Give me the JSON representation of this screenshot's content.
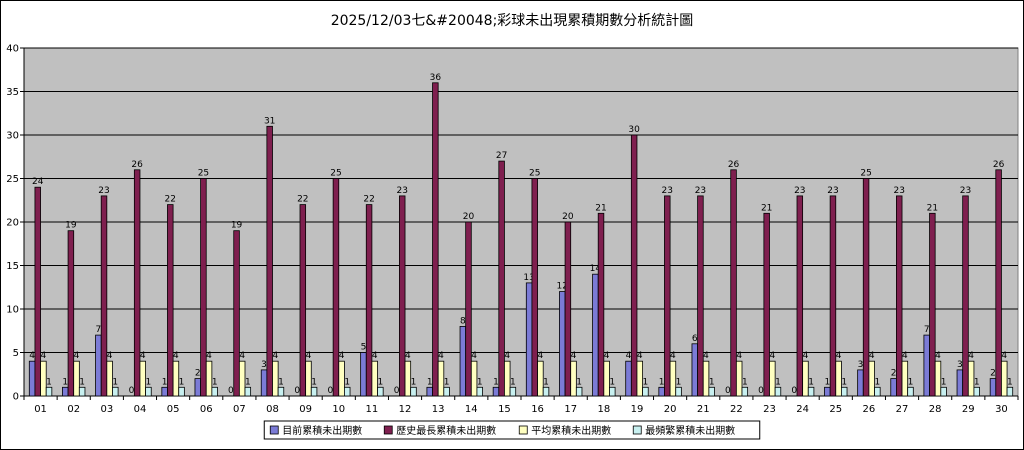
{
  "chart_data": {
    "type": "bar",
    "title": "2025/12/03七&#20048;彩球未出現累積期數分析統計圖",
    "xlabel": "",
    "ylabel": "",
    "ylim": [
      0,
      40
    ],
    "yticks": [
      0,
      5,
      10,
      15,
      20,
      25,
      30,
      35,
      40
    ],
    "grid": true,
    "legend_position": "bottom",
    "categories": [
      "01",
      "02",
      "03",
      "04",
      "05",
      "06",
      "07",
      "08",
      "09",
      "10",
      "11",
      "12",
      "13",
      "14",
      "15",
      "16",
      "17",
      "18",
      "19",
      "20",
      "21",
      "22",
      "23",
      "24",
      "25",
      "26",
      "27",
      "28",
      "29",
      "30"
    ],
    "series": [
      {
        "name": "目前累積未出期數",
        "color": "#7b7bd6",
        "values": [
          4,
          1,
          7,
          0,
          1,
          2,
          0,
          3,
          0,
          0,
          5,
          0,
          1,
          8,
          1,
          13,
          12,
          14,
          4,
          1,
          6,
          0,
          0,
          0,
          1,
          3,
          2,
          7,
          3,
          2
        ]
      },
      {
        "name": "歷史最長累積未出期數",
        "color": "#7f1f4f",
        "values": [
          24,
          19,
          23,
          26,
          22,
          25,
          19,
          31,
          22,
          25,
          22,
          23,
          36,
          20,
          27,
          25,
          20,
          21,
          30,
          23,
          23,
          26,
          21,
          23,
          23,
          25,
          23,
          21,
          23,
          26
        ]
      },
      {
        "name": "平均累積未出期數",
        "color": "#ffffc0",
        "values": [
          4,
          4,
          4,
          4,
          4,
          4,
          4,
          4,
          4,
          4,
          4,
          4,
          4,
          4,
          4,
          4,
          4,
          4,
          4,
          4,
          4,
          4,
          4,
          4,
          4,
          4,
          4,
          4,
          4,
          4
        ]
      },
      {
        "name": "最頻繁累積未出期數",
        "color": "#c8f0f0",
        "values": [
          1,
          1,
          1,
          1,
          1,
          1,
          1,
          1,
          1,
          1,
          1,
          1,
          1,
          1,
          1,
          1,
          1,
          1,
          1,
          1,
          1,
          1,
          1,
          1,
          1,
          1,
          1,
          1,
          1,
          1
        ]
      }
    ]
  }
}
